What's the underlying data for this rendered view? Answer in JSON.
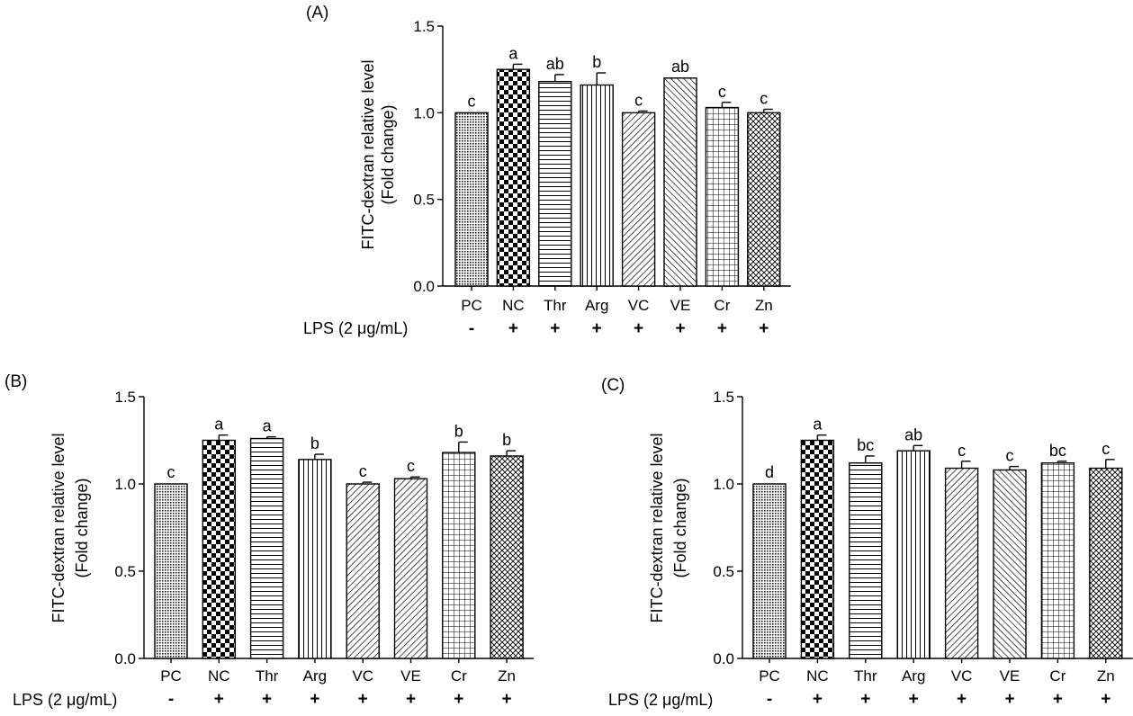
{
  "panels": [
    {
      "id": "A",
      "panel_label": "(A)",
      "ylabel_line1": "FITC-dextran relative level",
      "ylabel_line2": "(Fold change)",
      "lps_label": "LPS (2 μg/mL)",
      "yticks": [
        "0.0",
        "0.5",
        "1.0",
        "1.5"
      ]
    },
    {
      "id": "B",
      "panel_label": "(B)",
      "ylabel_line1": "FITC-dextran relative level",
      "ylabel_line2": "(Fold change)",
      "lps_label": "LPS (2 μg/mL)",
      "yticks": [
        "0.0",
        "0.5",
        "1.0",
        "1.5"
      ]
    },
    {
      "id": "C",
      "panel_label": "(C)",
      "ylabel_line1": "FITC-dextran relative level",
      "ylabel_line2": "(Fold change)",
      "lps_label": "LPS (2 μg/mL)",
      "yticks": [
        "0.0",
        "0.5",
        "1.0",
        "1.5"
      ]
    }
  ],
  "chart_data": [
    {
      "type": "bar",
      "panel": "(A)",
      "categories": [
        "PC",
        "NC",
        "Thr",
        "Arg",
        "VC",
        "VE",
        "Cr",
        "Zn"
      ],
      "lps": [
        "-",
        "+",
        "+",
        "+",
        "+",
        "+",
        "+",
        "+"
      ],
      "values": [
        1.0,
        1.25,
        1.18,
        1.16,
        1.0,
        1.2,
        1.03,
        1.0
      ],
      "errors": [
        0.0,
        0.03,
        0.04,
        0.07,
        0.01,
        0.0,
        0.03,
        0.02
      ],
      "letters": [
        "c",
        "a",
        "ab",
        "b",
        "c",
        "ab",
        "c",
        "c"
      ],
      "ylabel": "FITC-dextran relative level (Fold change)",
      "ylim": [
        0,
        1.5
      ],
      "yticks": [
        0.0,
        0.5,
        1.0,
        1.5
      ],
      "patterns": [
        "dots",
        "checker",
        "hlines",
        "vlines",
        "diag-right",
        "diag-left",
        "grid",
        "crosshatch"
      ]
    },
    {
      "type": "bar",
      "panel": "(B)",
      "categories": [
        "PC",
        "NC",
        "Thr",
        "Arg",
        "VC",
        "VE",
        "Cr",
        "Zn"
      ],
      "lps": [
        "-",
        "+",
        "+",
        "+",
        "+",
        "+",
        "+",
        "+"
      ],
      "values": [
        1.0,
        1.25,
        1.26,
        1.14,
        1.0,
        1.03,
        1.18,
        1.16
      ],
      "errors": [
        0.0,
        0.03,
        0.01,
        0.03,
        0.01,
        0.01,
        0.06,
        0.03
      ],
      "letters": [
        "c",
        "a",
        "a",
        "b",
        "c",
        "c",
        "b",
        "b"
      ],
      "ylabel": "FITC-dextran relative level (Fold change)",
      "ylim": [
        0,
        1.5
      ],
      "yticks": [
        0.0,
        0.5,
        1.0,
        1.5
      ],
      "patterns": [
        "dots",
        "checker",
        "hlines",
        "vlines",
        "diag-right",
        "diag-right",
        "grid",
        "crosshatch"
      ]
    },
    {
      "type": "bar",
      "panel": "(C)",
      "categories": [
        "PC",
        "NC",
        "Thr",
        "Arg",
        "VC",
        "VE",
        "Cr",
        "Zn"
      ],
      "lps": [
        "-",
        "+",
        "+",
        "+",
        "+",
        "+",
        "+",
        "+"
      ],
      "values": [
        1.0,
        1.25,
        1.12,
        1.19,
        1.09,
        1.08,
        1.12,
        1.09
      ],
      "errors": [
        0.0,
        0.03,
        0.04,
        0.03,
        0.04,
        0.02,
        0.01,
        0.05
      ],
      "letters": [
        "d",
        "a",
        "bc",
        "ab",
        "c",
        "c",
        "bc",
        "c"
      ],
      "ylabel": "FITC-dextran relative level (Fold change)",
      "ylim": [
        0,
        1.5
      ],
      "yticks": [
        0.0,
        0.5,
        1.0,
        1.5
      ],
      "patterns": [
        "dots",
        "checker",
        "hlines",
        "vlines",
        "diag-right",
        "diag-left",
        "grid",
        "crosshatch"
      ]
    }
  ]
}
